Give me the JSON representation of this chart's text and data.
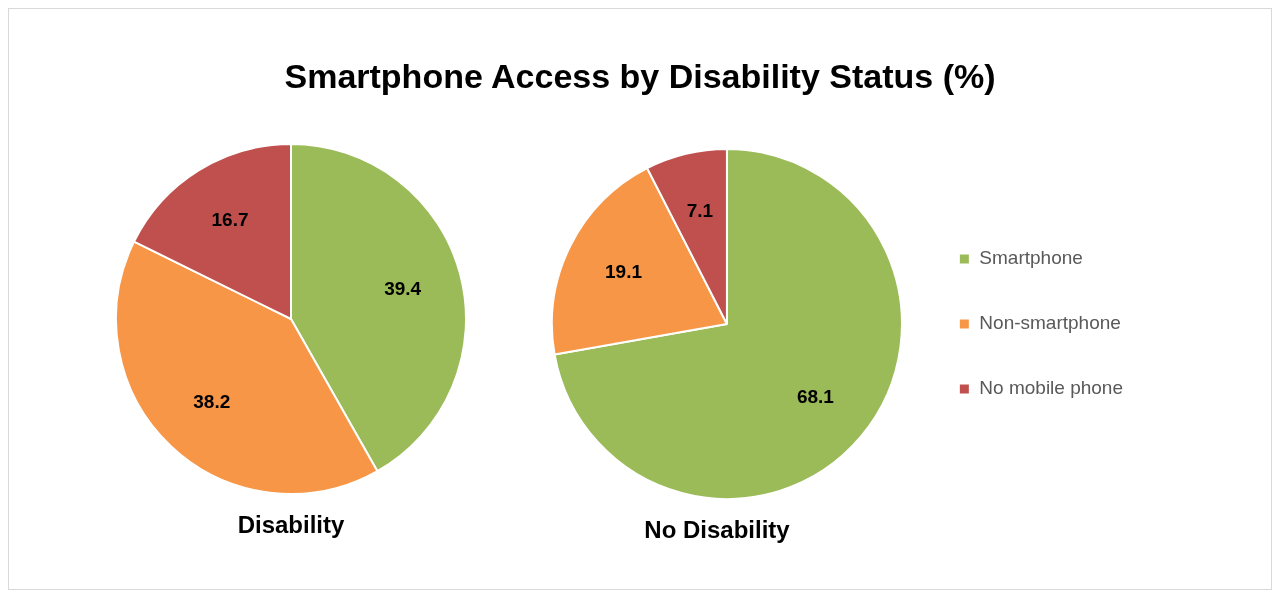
{
  "chart_data": [
    {
      "type": "pie",
      "title": "Smartphone Access by Disability Status (%)",
      "xlabel": "Disability",
      "categories": [
        null,
        null,
        null
      ],
      "values": [
        39.4,
        38.2,
        16.7
      ],
      "colors": [
        "#9bbb59",
        "#f79646",
        "#c0504d"
      ],
      "data_labels": true,
      "legend": false
    },
    {
      "type": "pie",
      "xlabel": "No Disability",
      "categories": [
        "Smartphone",
        "Non-smartphone",
        "No mobile phone"
      ],
      "values": [
        68.1,
        19.1,
        7.1
      ],
      "colors": [
        "#9bbb59",
        "#f79646",
        "#c0504d"
      ],
      "data_labels": true,
      "legend": "right"
    }
  ]
}
